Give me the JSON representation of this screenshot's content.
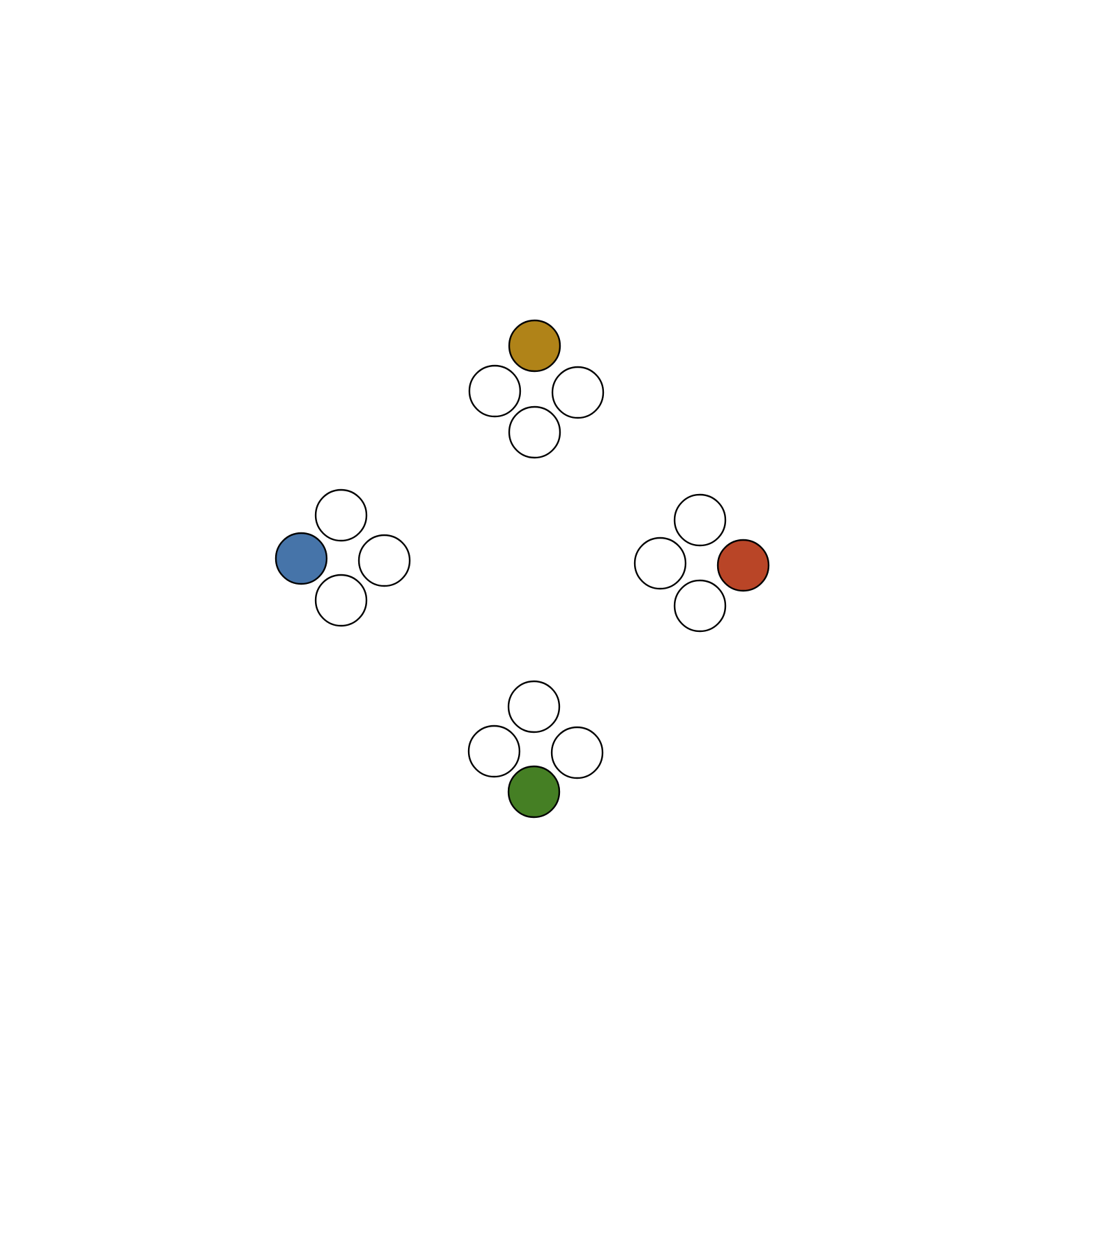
{
  "diagram": {
    "stroke_color": "#000000",
    "empty_fill": "#ffffff",
    "clusters": [
      {
        "name": "top",
        "highlighted_position": "top",
        "highlight_color": "#b08318"
      },
      {
        "name": "left",
        "highlighted_position": "left",
        "highlight_color": "#4674a9"
      },
      {
        "name": "right",
        "highlighted_position": "right",
        "highlight_color": "#b94527"
      },
      {
        "name": "bottom",
        "highlighted_position": "bottom",
        "highlight_color": "#457f24"
      }
    ]
  }
}
